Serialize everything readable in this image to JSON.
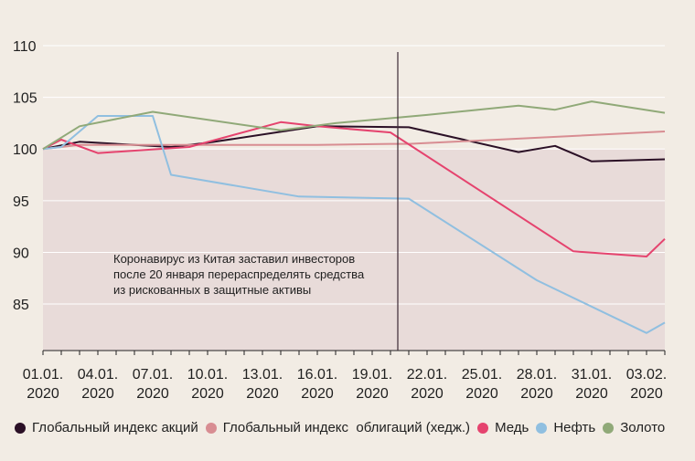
{
  "chart_data": {
    "type": "line",
    "x": [
      "01.01.2020",
      "02.01.2020",
      "03.01.2020",
      "04.01.2020",
      "07.01.2020",
      "08.01.2020",
      "09.01.2020",
      "10.01.2020",
      "13.01.2020",
      "14.01.2020",
      "15.01.2020",
      "16.01.2020",
      "17.01.2020",
      "20.01.2020",
      "21.01.2020",
      "22.01.2020",
      "23.01.2020",
      "24.01.2020",
      "27.01.2020",
      "28.01.2020",
      "29.01.2020",
      "30.01.2020",
      "31.01.2020",
      "03.02.2020",
      "04.02.2020"
    ],
    "x_ticks": [
      "01.01.\n2020",
      "04.01.\n2020",
      "07.01.\n2020",
      "10.01.\n2020",
      "13.01.\n2020",
      "16.01.\n2020",
      "19.01.\n2020",
      "22.01.\n2020",
      "25.01.\n2020",
      "28.01.\n2020",
      "31.01.\n2020",
      "03.02.\n2020"
    ],
    "ylim": [
      80.5,
      110
    ],
    "yticks": [
      85,
      90,
      95,
      100,
      105,
      110
    ],
    "vertical_marker": "20.01.2020",
    "shaded_below": 100,
    "annotation": [
      "Коронавирус из Китая заставил инвесторов",
      "после 20 января перераспределять средства",
      "из рискованных в защитные активы"
    ],
    "series": [
      {
        "name": "Глобальный индекс акций",
        "color": "#2b1026",
        "points": [
          [
            "01.01.2020",
            100.0
          ],
          [
            "03.01.2020",
            100.7
          ],
          [
            "08.01.2020",
            100.2
          ],
          [
            "10.01.2020",
            100.6
          ],
          [
            "16.01.2020",
            102.2
          ],
          [
            "21.01.2020",
            102.1
          ],
          [
            "27.01.2020",
            99.7
          ],
          [
            "29.01.2020",
            100.3
          ],
          [
            "31.01.2020",
            98.8
          ],
          [
            "04.02.2020",
            99.0
          ]
        ]
      },
      {
        "name": "Глобальный индекс  облигаций (хедж.)",
        "color": "#d88d92",
        "points": [
          [
            "01.01.2020",
            100.0
          ],
          [
            "03.01.2020",
            100.4
          ],
          [
            "07.01.2020",
            100.4
          ],
          [
            "16.01.2020",
            100.4
          ],
          [
            "20.01.2020",
            100.5
          ],
          [
            "21.01.2020",
            100.5
          ],
          [
            "27.01.2020",
            101.0
          ],
          [
            "04.02.2020",
            101.7
          ]
        ]
      },
      {
        "name": "Медь",
        "color": "#e5436e",
        "points": [
          [
            "01.01.2020",
            100.0
          ],
          [
            "02.01.2020",
            100.9
          ],
          [
            "04.01.2020",
            99.6
          ],
          [
            "09.01.2020",
            100.2
          ],
          [
            "14.01.2020",
            102.6
          ],
          [
            "16.01.2020",
            102.2
          ],
          [
            "20.01.2020",
            101.6
          ],
          [
            "30.01.2020",
            90.1
          ],
          [
            "03.02.2020",
            89.6
          ],
          [
            "04.02.2020",
            91.3
          ]
        ]
      },
      {
        "name": "Нефть",
        "color": "#90bfe0",
        "points": [
          [
            "01.01.2020",
            100.0
          ],
          [
            "02.01.2020",
            100.2
          ],
          [
            "04.01.2020",
            103.2
          ],
          [
            "07.01.2020",
            103.2
          ],
          [
            "08.01.2020",
            97.5
          ],
          [
            "15.01.2020",
            95.4
          ],
          [
            "21.01.2020",
            95.2
          ],
          [
            "28.01.2020",
            87.3
          ],
          [
            "03.02.2020",
            82.2
          ],
          [
            "04.02.2020",
            83.2
          ]
        ]
      },
      {
        "name": "Золото",
        "color": "#90a978",
        "points": [
          [
            "01.01.2020",
            100.0
          ],
          [
            "03.01.2020",
            102.2
          ],
          [
            "07.01.2020",
            103.6
          ],
          [
            "14.01.2020",
            101.8
          ],
          [
            "17.01.2020",
            102.5
          ],
          [
            "22.01.2020",
            103.3
          ],
          [
            "27.01.2020",
            104.2
          ],
          [
            "29.01.2020",
            103.8
          ],
          [
            "31.01.2020",
            104.6
          ],
          [
            "04.02.2020",
            103.5
          ]
        ]
      }
    ]
  }
}
